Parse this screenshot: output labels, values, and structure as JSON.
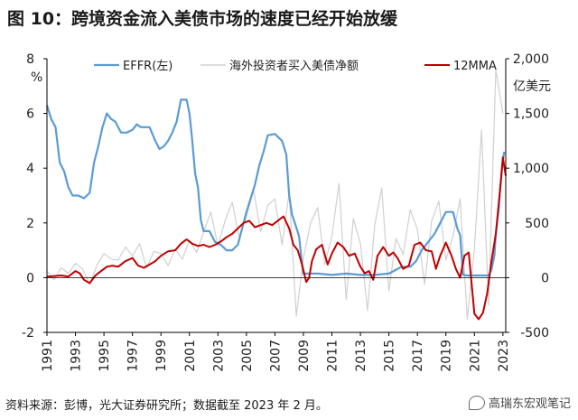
{
  "title": "图 10：跨境资金流入美债市场的速度已经开始放缓",
  "source": "资料来源：彭博，光大证券研究所；数据截至 2023 年 2 月。",
  "watermark": "高瑞东宏观笔记",
  "colors": {
    "effr": "#5b9bd5",
    "flows": "#d0d0d0",
    "mma": "#c00000",
    "axis": "#000000"
  },
  "chart_data": {
    "type": "line",
    "x_ticks": [
      "1991",
      "1993",
      "1995",
      "1997",
      "1999",
      "2001",
      "2003",
      "2005",
      "2007",
      "2009",
      "2011",
      "2013",
      "2015",
      "2017",
      "2019",
      "2021",
      "2023"
    ],
    "xlim": [
      1991,
      2023.2
    ],
    "y_left": {
      "unit": "%",
      "ticks": [
        "8",
        "6",
        "4",
        "2",
        "0",
        "-2"
      ],
      "range": [
        -2,
        8
      ]
    },
    "y_right": {
      "unit": "亿美元",
      "ticks": [
        "2,000",
        "1,500",
        "1,000",
        "500",
        "0",
        "-500"
      ],
      "range": [
        -500,
        2000
      ]
    },
    "legend": [
      "EFFR(左)",
      "海外投资者买入美债净额",
      "12MMA"
    ],
    "series": [
      {
        "name": "EFFR(左)",
        "axis": "left",
        "x": [
          1991.0,
          1991.3,
          1991.6,
          1991.9,
          1992.2,
          1992.5,
          1992.8,
          1993.2,
          1993.6,
          1994.0,
          1994.3,
          1994.6,
          1994.9,
          1995.2,
          1995.5,
          1995.8,
          1996.2,
          1996.6,
          1997.0,
          1997.3,
          1997.6,
          1997.9,
          1998.2,
          1998.6,
          1998.9,
          1999.2,
          1999.5,
          1999.8,
          2000.1,
          2000.4,
          2000.8,
          2001.0,
          2001.2,
          2001.4,
          2001.6,
          2001.8,
          2002.0,
          2002.4,
          2002.8,
          2003.2,
          2003.6,
          2004.0,
          2004.4,
          2004.7,
          2005.0,
          2005.3,
          2005.6,
          2005.9,
          2006.2,
          2006.5,
          2007.0,
          2007.5,
          2007.8,
          2008.0,
          2008.2,
          2008.4,
          2008.7,
          2008.9,
          2009.0,
          2010.0,
          2011.0,
          2012.0,
          2013.0,
          2014.0,
          2015.0,
          2015.9,
          2016.2,
          2016.5,
          2016.9,
          2017.3,
          2017.6,
          2017.9,
          2018.2,
          2018.5,
          2018.8,
          2019.0,
          2019.5,
          2019.8,
          2020.0,
          2020.2,
          2020.5,
          2021.0,
          2021.5,
          2022.0,
          2022.2,
          2022.4,
          2022.5,
          2022.7,
          2022.8,
          2023.0,
          2023.1
        ],
        "values": [
          6.3,
          5.8,
          5.5,
          4.2,
          3.9,
          3.3,
          3.0,
          3.0,
          2.9,
          3.1,
          4.2,
          4.8,
          5.5,
          6.0,
          5.8,
          5.7,
          5.3,
          5.3,
          5.4,
          5.6,
          5.5,
          5.5,
          5.5,
          5.0,
          4.7,
          4.8,
          5.0,
          5.3,
          5.7,
          6.5,
          6.5,
          6.0,
          5.0,
          3.8,
          3.3,
          2.1,
          1.7,
          1.7,
          1.3,
          1.2,
          1.0,
          1.0,
          1.2,
          1.8,
          2.4,
          2.9,
          3.4,
          4.1,
          4.6,
          5.2,
          5.25,
          5.0,
          4.5,
          3.0,
          2.3,
          2.0,
          1.5,
          0.5,
          0.15,
          0.15,
          0.1,
          0.15,
          0.1,
          0.1,
          0.15,
          0.4,
          0.4,
          0.4,
          0.6,
          1.0,
          1.2,
          1.4,
          1.6,
          1.9,
          2.2,
          2.4,
          2.4,
          1.8,
          1.55,
          0.1,
          0.08,
          0.08,
          0.08,
          0.08,
          0.3,
          0.8,
          1.6,
          2.5,
          3.2,
          4.3,
          4.6
        ]
      },
      {
        "name": "海外投资者买入美债净额",
        "axis": "right",
        "x": [
          1991.0,
          1991.5,
          1992.0,
          1992.5,
          1993.0,
          1993.5,
          1994.0,
          1994.5,
          1995.0,
          1995.5,
          1996.0,
          1996.5,
          1997.0,
          1997.5,
          1998.0,
          1998.5,
          1999.0,
          1999.5,
          2000.0,
          2000.5,
          2001.0,
          2001.5,
          2002.0,
          2002.5,
          2003.0,
          2003.5,
          2004.0,
          2004.5,
          2005.0,
          2005.5,
          2006.0,
          2006.5,
          2007.0,
          2007.5,
          2008.0,
          2008.5,
          2009.0,
          2009.5,
          2010.0,
          2010.5,
          2011.0,
          2011.5,
          2012.0,
          2012.5,
          2013.0,
          2013.5,
          2014.0,
          2014.5,
          2015.0,
          2015.5,
          2016.0,
          2016.5,
          2017.0,
          2017.5,
          2018.0,
          2018.5,
          2019.0,
          2019.5,
          2020.0,
          2020.5,
          2021.0,
          2021.5,
          2022.0,
          2022.5,
          2023.0
        ],
        "values": [
          60,
          -20,
          90,
          40,
          130,
          80,
          -60,
          110,
          220,
          170,
          160,
          280,
          200,
          310,
          90,
          240,
          220,
          110,
          260,
          170,
          340,
          230,
          420,
          600,
          290,
          520,
          690,
          360,
          560,
          800,
          420,
          660,
          720,
          300,
          780,
          -350,
          180,
          500,
          640,
          120,
          380,
          860,
          -200,
          540,
          310,
          -300,
          480,
          820,
          -120,
          360,
          210,
          620,
          440,
          -60,
          520,
          700,
          160,
          380,
          720,
          -380,
          260,
          1350,
          -250,
          1900,
          1500
        ]
      },
      {
        "name": "12MMA",
        "axis": "right",
        "x": [
          1991.0,
          1991.5,
          1992.0,
          1992.5,
          1993.0,
          1993.3,
          1993.6,
          1994.0,
          1994.4,
          1994.8,
          1995.2,
          1995.6,
          1996.0,
          1996.5,
          1997.0,
          1997.4,
          1997.8,
          1998.2,
          1998.6,
          1999.0,
          1999.5,
          2000.0,
          2000.4,
          2000.8,
          2001.2,
          2001.6,
          2002.0,
          2002.4,
          2002.8,
          2003.2,
          2003.6,
          2004.0,
          2004.4,
          2004.8,
          2005.2,
          2005.6,
          2006.0,
          2006.4,
          2006.8,
          2007.2,
          2007.6,
          2008.0,
          2008.3,
          2008.6,
          2008.9,
          2009.2,
          2009.4,
          2009.6,
          2009.9,
          2010.3,
          2010.7,
          2011.0,
          2011.4,
          2011.8,
          2012.2,
          2012.6,
          2013.0,
          2013.3,
          2013.6,
          2013.9,
          2014.2,
          2014.6,
          2015.0,
          2015.3,
          2015.6,
          2016.0,
          2016.4,
          2016.8,
          2017.2,
          2017.6,
          2018.0,
          2018.3,
          2018.6,
          2019.0,
          2019.4,
          2019.7,
          2020.0,
          2020.3,
          2020.6,
          2021.0,
          2021.3,
          2021.6,
          2021.9,
          2022.2,
          2022.5,
          2022.8,
          2023.0,
          2023.2
        ],
        "values": [
          10,
          15,
          20,
          10,
          60,
          40,
          -20,
          -50,
          20,
          60,
          100,
          110,
          100,
          150,
          180,
          110,
          90,
          120,
          150,
          200,
          240,
          250,
          310,
          350,
          310,
          290,
          300,
          280,
          300,
          330,
          370,
          400,
          450,
          500,
          520,
          460,
          480,
          500,
          480,
          520,
          560,
          450,
          300,
          250,
          120,
          -40,
          0,
          150,
          260,
          300,
          120,
          220,
          320,
          280,
          200,
          220,
          100,
          40,
          60,
          -20,
          200,
          280,
          200,
          230,
          180,
          80,
          110,
          300,
          320,
          250,
          240,
          80,
          200,
          320,
          200,
          80,
          0,
          200,
          230,
          -330,
          -380,
          -320,
          -140,
          150,
          400,
          800,
          1100,
          930
        ]
      }
    ]
  }
}
